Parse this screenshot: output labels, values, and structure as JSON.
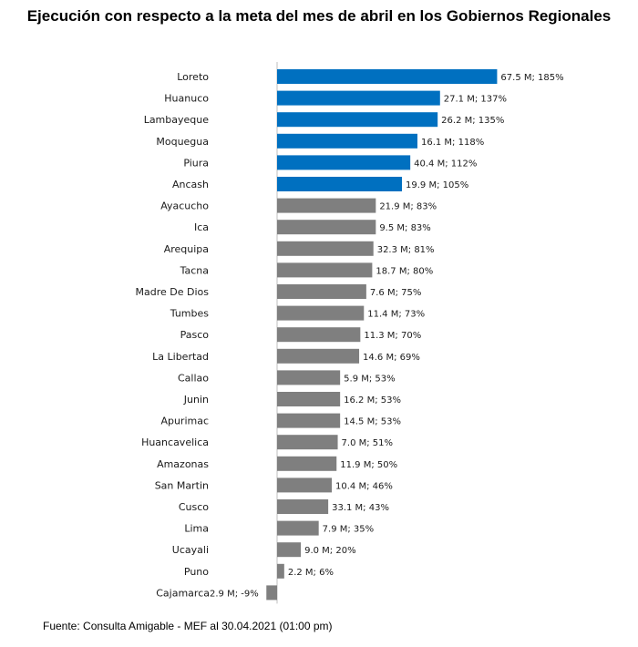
{
  "chart_data": {
    "type": "bar",
    "orientation": "horizontal",
    "title": "Ejecución con respecto a la meta del mes de abril en los Gobiernos Regionales",
    "source": "Fuente: Consulta Amigable - MEF al 30.04.2021 (01:00 pm)",
    "highlight_threshold_pct": 100,
    "colors": {
      "above_target": "#0070c0",
      "below_target": "#7f7f7f",
      "axis": "#bfbfbf"
    },
    "categories": [
      "Loreto",
      "Huanuco",
      "Lambayeque",
      "Moquegua",
      "Piura",
      "Ancash",
      "Ayacucho",
      "Ica",
      "Arequipa",
      "Tacna",
      "Madre De Dios",
      "Tumbes",
      "Pasco",
      "La Libertad",
      "Callao",
      "Junin",
      "Apurimac",
      "Huancavelica",
      "Amazonas",
      "San Martin",
      "Cusco",
      "Lima",
      "Ucayali",
      "Puno",
      "Cajamarca"
    ],
    "values": [
      185,
      137,
      135,
      118,
      112,
      105,
      83,
      83,
      81,
      80,
      75,
      73,
      70,
      69,
      53,
      53,
      53,
      51,
      50,
      46,
      43,
      35,
      20,
      6,
      -9
    ],
    "data_labels": [
      "67.5 M; 185%",
      "27.1 M; 137%",
      "26.2 M; 135%",
      "16.1 M; 118%",
      "40.4 M; 112%",
      "19.9 M; 105%",
      "21.9 M; 83%",
      "9.5 M; 83%",
      "32.3 M; 81%",
      "18.7 M; 80%",
      "7.6 M; 75%",
      "11.4 M; 73%",
      "11.3 M; 70%",
      "14.6 M; 69%",
      "5.9 M; 53%",
      "16.2 M; 53%",
      "14.5 M; 53%",
      "7.0 M; 51%",
      "11.9 M; 50%",
      "10.4 M; 46%",
      "33.1 M; 43%",
      "7.9 M; 35%",
      "9.0 M; 20%",
      "2.2 M; 6%",
      "2.9 M; -9%"
    ],
    "xlabel": "",
    "ylabel": "",
    "xlim": [
      -9,
      185
    ]
  }
}
